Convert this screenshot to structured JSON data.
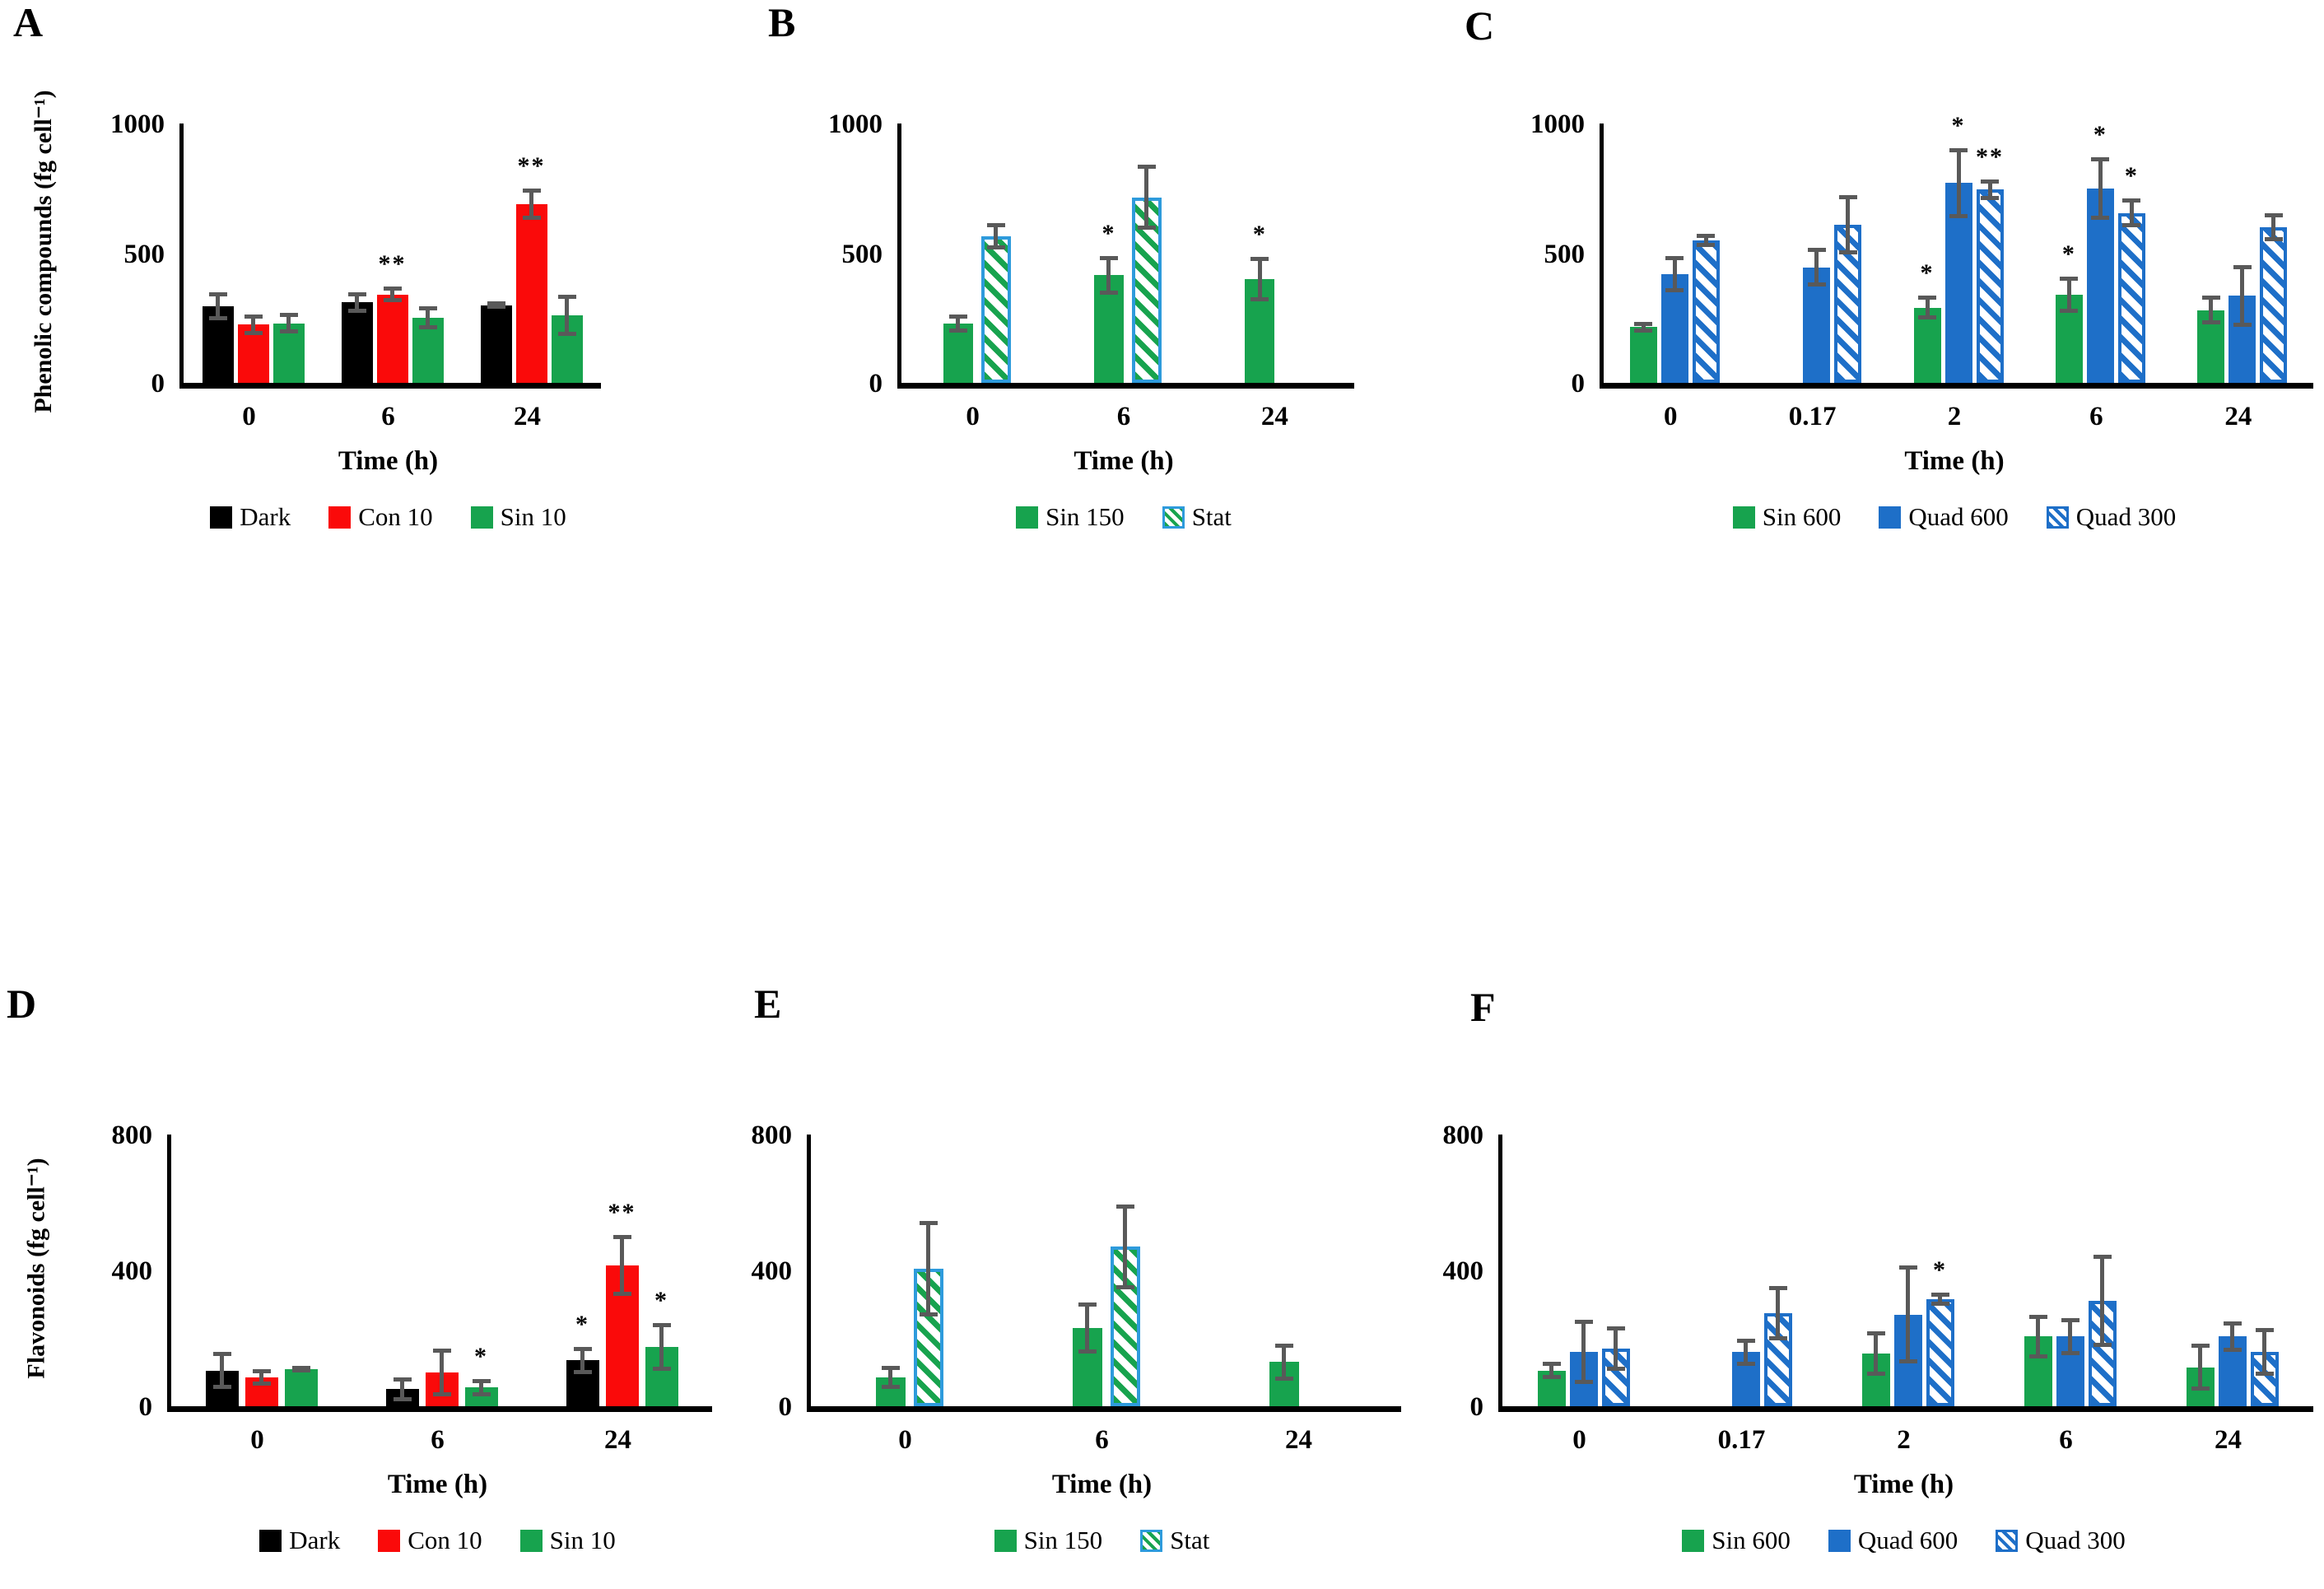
{
  "error_bar_color": "#595959",
  "axis_color": "#000000",
  "text_color": "#000000",
  "background": "#ffffff",
  "chart_data": [
    {
      "id": "A",
      "type": "bar",
      "panel_letter": "A",
      "ylabel": "Phenolic compounds (fg cell⁻¹)",
      "xlabel": "Time (h)",
      "ylim": [
        0,
        1000
      ],
      "yticks": [
        0,
        500,
        1000
      ],
      "categories": [
        "0",
        "6",
        "24"
      ],
      "grid": false,
      "legend_position": "bottom",
      "series": [
        {
          "name": "Dark",
          "color": "#000000",
          "pattern": "solid",
          "values": [
            295,
            310,
            300
          ],
          "errors": [
            55,
            40,
            15
          ],
          "sig": [
            "",
            "",
            ""
          ]
        },
        {
          "name": "Con 10",
          "color": "#FA0A0A",
          "pattern": "solid",
          "values": [
            225,
            340,
            690
          ],
          "errors": [
            40,
            30,
            60
          ],
          "sig": [
            "",
            "**",
            "**"
          ]
        },
        {
          "name": "Sin 10",
          "color": "#17A34E",
          "pattern": "solid",
          "values": [
            230,
            250,
            260
          ],
          "errors": [
            40,
            45,
            80
          ],
          "sig": [
            "",
            "",
            ""
          ]
        }
      ]
    },
    {
      "id": "B",
      "type": "bar",
      "panel_letter": "B",
      "ylabel": "",
      "xlabel": "Time (h)",
      "ylim": [
        0,
        1000
      ],
      "yticks": [
        0,
        500,
        1000
      ],
      "categories": [
        "0",
        "6",
        "24"
      ],
      "grid": false,
      "legend_position": "bottom",
      "series": [
        {
          "name": "Sin 150",
          "color": "#17A34E",
          "pattern": "solid",
          "values": [
            230,
            415,
            400
          ],
          "errors": [
            35,
            75,
            85
          ],
          "sig": [
            "",
            "*",
            "*"
          ]
        },
        {
          "name": "Stat",
          "color": "#17A34E",
          "pattern": "hatch",
          "border": "#2E9BDC",
          "values": [
            565,
            715,
            null
          ],
          "errors": [
            50,
            125,
            null
          ],
          "sig": [
            "",
            "",
            ""
          ]
        }
      ]
    },
    {
      "id": "C",
      "type": "bar",
      "panel_letter": "C",
      "ylabel": "",
      "xlabel": "Time (h)",
      "ylim": [
        0,
        1000
      ],
      "yticks": [
        0,
        500,
        1000
      ],
      "categories": [
        "0",
        "0.17",
        "2",
        "6",
        "24"
      ],
      "grid": false,
      "legend_position": "bottom",
      "series": [
        {
          "name": "Sin 600",
          "color": "#17A34E",
          "pattern": "solid",
          "values": [
            215,
            null,
            290,
            340,
            280
          ],
          "errors": [
            20,
            null,
            45,
            70,
            55
          ],
          "sig": [
            "",
            "",
            "*",
            "*",
            ""
          ]
        },
        {
          "name": "Quad 600",
          "color": "#1E6FC8",
          "pattern": "solid",
          "values": [
            420,
            445,
            770,
            750,
            335
          ],
          "errors": [
            70,
            75,
            135,
            120,
            120
          ],
          "sig": [
            "",
            "",
            "*",
            "*",
            ""
          ]
        },
        {
          "name": "Quad 300",
          "color": "#1E6FC8",
          "pattern": "hatch",
          "border": "#1E6FC8",
          "values": [
            550,
            610,
            745,
            655,
            600
          ],
          "errors": [
            25,
            115,
            40,
            55,
            55
          ],
          "sig": [
            "",
            "",
            "**",
            "*",
            ""
          ]
        }
      ]
    },
    {
      "id": "D",
      "type": "bar",
      "panel_letter": "D",
      "ylabel": "Flavonoids (fg cell⁻¹)",
      "xlabel": "Time (h)",
      "ylim": [
        0,
        800
      ],
      "yticks": [
        0,
        400,
        800
      ],
      "categories": [
        "0",
        "6",
        "24"
      ],
      "grid": false,
      "legend_position": "bottom",
      "series": [
        {
          "name": "Dark",
          "color": "#000000",
          "pattern": "solid",
          "values": [
            105,
            50,
            135
          ],
          "errors": [
            55,
            35,
            40
          ],
          "sig": [
            "",
            "",
            "*"
          ]
        },
        {
          "name": "Con 10",
          "color": "#FA0A0A",
          "pattern": "solid",
          "values": [
            85,
            100,
            415
          ],
          "errors": [
            25,
            70,
            90
          ],
          "sig": [
            "",
            "",
            "**"
          ]
        },
        {
          "name": "Sin 10",
          "color": "#17A34E",
          "pattern": "solid",
          "values": [
            110,
            55,
            175
          ],
          "errors": [
            10,
            25,
            70
          ],
          "sig": [
            "",
            "*",
            "*"
          ]
        }
      ]
    },
    {
      "id": "E",
      "type": "bar",
      "panel_letter": "E",
      "ylabel": "",
      "xlabel": "Time (h)",
      "ylim": [
        0,
        800
      ],
      "yticks": [
        0,
        400,
        800
      ],
      "categories": [
        "0",
        "6",
        "24"
      ],
      "grid": false,
      "legend_position": "bottom",
      "series": [
        {
          "name": "Sin 150",
          "color": "#17A34E",
          "pattern": "solid",
          "values": [
            85,
            230,
            130
          ],
          "errors": [
            35,
            75,
            55
          ],
          "sig": [
            "",
            "",
            ""
          ]
        },
        {
          "name": "Stat",
          "color": "#17A34E",
          "pattern": "hatch",
          "border": "#2E9BDC",
          "values": [
            405,
            470,
            null
          ],
          "errors": [
            140,
            125,
            null
          ],
          "sig": [
            "",
            "",
            ""
          ]
        }
      ]
    },
    {
      "id": "F",
      "type": "bar",
      "panel_letter": "F",
      "ylabel": "",
      "xlabel": "Time (h)",
      "ylim": [
        0,
        800
      ],
      "yticks": [
        0,
        400,
        800
      ],
      "categories": [
        "0",
        "0.17",
        "2",
        "6",
        "24"
      ],
      "grid": false,
      "legend_position": "bottom",
      "series": [
        {
          "name": "Sin 600",
          "color": "#17A34E",
          "pattern": "solid",
          "values": [
            105,
            null,
            155,
            205,
            115
          ],
          "errors": [
            25,
            null,
            65,
            65,
            70
          ],
          "sig": [
            "",
            "",
            "",
            "",
            ""
          ]
        },
        {
          "name": "Quad 600",
          "color": "#1E6FC8",
          "pattern": "solid",
          "values": [
            160,
            160,
            270,
            205,
            205
          ],
          "errors": [
            95,
            40,
            145,
            55,
            45
          ],
          "sig": [
            "",
            "",
            "",
            "",
            ""
          ]
        },
        {
          "name": "Quad 300",
          "color": "#1E6FC8",
          "pattern": "hatch",
          "border": "#1E6FC8",
          "values": [
            170,
            275,
            315,
            310,
            160
          ],
          "errors": [
            65,
            80,
            20,
            135,
            70
          ],
          "sig": [
            "",
            "",
            "*",
            "",
            ""
          ]
        }
      ]
    }
  ]
}
